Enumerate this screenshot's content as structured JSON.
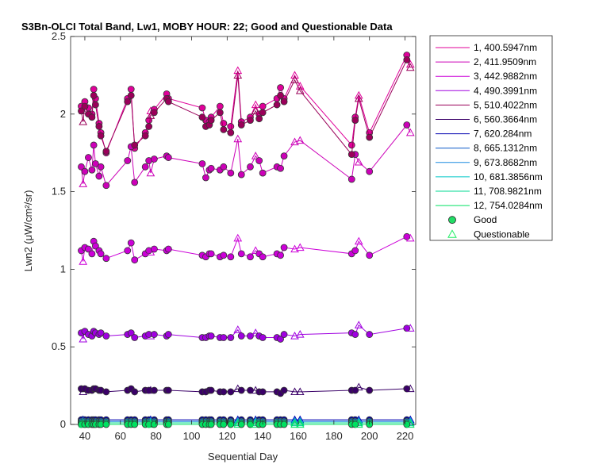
{
  "chart_data": {
    "type": "scatter",
    "title": "S3Bn-OLCI Total Band, Lw1, MOBY HOUR: 22;  Good and Questionable Data",
    "xlabel": "Sequential Day",
    "ylabel": "Lwn2 (μW/cm²/sr)",
    "xlim": [
      32,
      226
    ],
    "ylim": [
      0,
      2.5
    ],
    "x_ticks": [
      40,
      60,
      80,
      100,
      120,
      140,
      160,
      180,
      200,
      220
    ],
    "y_ticks": [
      0,
      0.5,
      1,
      1.5,
      2,
      2.5
    ],
    "y_tick_labels": [
      "0",
      "0.5",
      "1",
      "1.5",
      "2",
      "2.5"
    ],
    "grid": false,
    "legend_position": "outside-right",
    "series": [
      {
        "name": "1, 400.5947nm",
        "color": "#e0009a",
        "values": [
          2.05,
          2.02,
          2.08,
          2.04,
          2.0,
          2.16,
          2.1,
          1.94,
          1.88,
          1.75,
          2.1,
          2.16,
          1.78,
          1.88,
          1.96,
          2.02,
          2.03,
          2.13,
          2.1,
          2.04,
          1.96,
          1.95,
          1.98,
          2.05,
          1.94,
          1.92,
          2.28,
          1.95,
          1.98,
          2.06,
          2.0,
          2.05,
          2.1,
          2.17,
          2.1,
          2.25,
          2.18,
          1.8,
          1.98,
          2.12,
          1.88,
          2.38,
          2.32
        ]
      },
      {
        "name": "2, 411.9509nm",
        "color": "#cc00b8",
        "values": [
          1.66,
          1.55,
          1.63,
          1.72,
          1.64,
          1.8,
          1.68,
          1.6,
          1.66,
          1.54,
          1.7,
          1.79,
          1.56,
          1.66,
          1.7,
          1.62,
          1.71,
          1.73,
          1.72,
          1.68,
          1.59,
          1.64,
          1.65,
          1.64,
          1.66,
          1.62,
          1.84,
          1.61,
          1.66,
          1.73,
          1.7,
          1.62,
          1.66,
          1.65,
          1.73,
          1.82,
          1.83,
          1.58,
          1.74,
          1.69,
          1.63,
          1.93,
          1.88
        ]
      },
      {
        "name": "3, 442.9882nm",
        "color": "#cc00d8",
        "values": [
          1.12,
          1.05,
          1.14,
          1.13,
          1.1,
          1.18,
          1.15,
          1.12,
          1.1,
          1.07,
          1.12,
          1.17,
          1.06,
          1.1,
          1.12,
          1.11,
          1.13,
          1.12,
          1.13,
          1.09,
          1.08,
          1.1,
          1.1,
          1.08,
          1.09,
          1.08,
          1.2,
          1.1,
          1.08,
          1.12,
          1.1,
          1.08,
          1.1,
          1.09,
          1.14,
          1.13,
          1.14,
          1.1,
          1.12,
          1.18,
          1.09,
          1.21,
          1.2
        ]
      },
      {
        "name": "4, 490.3991nm",
        "color": "#a000e0",
        "values": [
          0.59,
          0.55,
          0.6,
          0.58,
          0.57,
          0.6,
          0.59,
          0.58,
          0.59,
          0.57,
          0.58,
          0.59,
          0.56,
          0.57,
          0.58,
          0.57,
          0.58,
          0.57,
          0.58,
          0.56,
          0.56,
          0.57,
          0.57,
          0.56,
          0.56,
          0.56,
          0.61,
          0.57,
          0.57,
          0.59,
          0.57,
          0.56,
          0.56,
          0.55,
          0.58,
          0.57,
          0.58,
          0.59,
          0.58,
          0.64,
          0.58,
          0.62,
          0.62
        ]
      },
      {
        "name": "5, 510.4022nm",
        "color": "#9a005a",
        "values": [
          2.02,
          1.95,
          2.05,
          2.0,
          1.98,
          2.12,
          2.06,
          1.92,
          1.86,
          1.76,
          2.08,
          2.12,
          1.8,
          1.86,
          1.92,
          1.99,
          2.01,
          2.1,
          2.08,
          1.98,
          1.92,
          1.93,
          1.96,
          2.01,
          1.9,
          1.88,
          2.25,
          1.93,
          1.96,
          2.02,
          1.97,
          2.01,
          2.06,
          2.12,
          2.08,
          2.22,
          2.15,
          1.74,
          1.96,
          2.1,
          1.85,
          2.35,
          2.3
        ]
      },
      {
        "name": "6, 560.3664nm",
        "color": "#3a0068",
        "values": [
          0.23,
          0.21,
          0.23,
          0.22,
          0.22,
          0.23,
          0.23,
          0.22,
          0.22,
          0.21,
          0.22,
          0.23,
          0.21,
          0.22,
          0.22,
          0.22,
          0.22,
          0.22,
          0.22,
          0.21,
          0.21,
          0.22,
          0.22,
          0.21,
          0.21,
          0.21,
          0.23,
          0.22,
          0.22,
          0.22,
          0.21,
          0.21,
          0.21,
          0.2,
          0.22,
          0.21,
          0.21,
          0.22,
          0.22,
          0.24,
          0.22,
          0.23,
          0.23
        ]
      },
      {
        "name": "7,  620.284nm",
        "color": "#0000b0",
        "values": [
          0.03,
          0.03,
          0.03,
          0.03,
          0.03,
          0.03,
          0.03,
          0.03,
          0.03,
          0.03,
          0.03,
          0.03,
          0.03,
          0.03,
          0.03,
          0.03,
          0.03,
          0.03,
          0.03,
          0.03,
          0.03,
          0.03,
          0.03,
          0.03,
          0.03,
          0.03,
          0.03,
          0.03,
          0.03,
          0.03,
          0.03,
          0.03,
          0.03,
          0.03,
          0.03,
          0.03,
          0.03,
          0.03,
          0.03,
          0.03,
          0.03,
          0.03,
          0.03
        ]
      },
      {
        "name": "8, 665.1312nm",
        "color": "#0a58c8",
        "values": [
          0.02,
          0.02,
          0.02,
          0.02,
          0.02,
          0.02,
          0.02,
          0.02,
          0.02,
          0.02,
          0.02,
          0.02,
          0.02,
          0.02,
          0.02,
          0.02,
          0.02,
          0.02,
          0.02,
          0.02,
          0.02,
          0.02,
          0.02,
          0.02,
          0.02,
          0.02,
          0.02,
          0.02,
          0.02,
          0.02,
          0.02,
          0.02,
          0.02,
          0.02,
          0.02,
          0.02,
          0.02,
          0.02,
          0.02,
          0.02,
          0.02,
          0.02,
          0.02
        ]
      },
      {
        "name": "9, 673.8682nm",
        "color": "#1a8ae0",
        "values": [
          0.02,
          0.02,
          0.02,
          0.02,
          0.02,
          0.02,
          0.02,
          0.02,
          0.02,
          0.02,
          0.02,
          0.02,
          0.02,
          0.02,
          0.02,
          0.02,
          0.02,
          0.02,
          0.02,
          0.02,
          0.02,
          0.02,
          0.02,
          0.02,
          0.02,
          0.02,
          0.02,
          0.02,
          0.02,
          0.02,
          0.02,
          0.02,
          0.02,
          0.02,
          0.02,
          0.02,
          0.02,
          0.02,
          0.02,
          0.02,
          0.02,
          0.02,
          0.02
        ]
      },
      {
        "name": "10, 681.3856nm",
        "color": "#00c8c8",
        "values": [
          0.01,
          0.01,
          0.01,
          0.01,
          0.01,
          0.01,
          0.01,
          0.01,
          0.01,
          0.01,
          0.01,
          0.01,
          0.01,
          0.01,
          0.01,
          0.01,
          0.01,
          0.01,
          0.01,
          0.01,
          0.01,
          0.01,
          0.01,
          0.01,
          0.01,
          0.01,
          0.01,
          0.01,
          0.01,
          0.01,
          0.01,
          0.01,
          0.01,
          0.01,
          0.01,
          0.01,
          0.01,
          0.01,
          0.01,
          0.01,
          0.01,
          0.01,
          0.01
        ]
      },
      {
        "name": "11, 708.9821nm",
        "color": "#00d890",
        "values": [
          0.01,
          0.01,
          0.01,
          0.01,
          0.01,
          0.01,
          0.01,
          0.01,
          0.01,
          0.01,
          0.01,
          0.01,
          0.01,
          0.01,
          0.01,
          0.01,
          0.01,
          0.01,
          0.01,
          0.01,
          0.01,
          0.01,
          0.01,
          0.01,
          0.01,
          0.01,
          0.01,
          0.01,
          0.01,
          0.01,
          0.01,
          0.01,
          0.01,
          0.01,
          0.01,
          0.01,
          0.01,
          0.01,
          0.01,
          0.01,
          0.01,
          0.01,
          0.01
        ]
      },
      {
        "name": "12, 754.0284nm",
        "color": "#00e060",
        "values": [
          0.0,
          0.0,
          0.0,
          0.0,
          0.0,
          0.0,
          0.0,
          0.0,
          0.0,
          0.0,
          0.0,
          0.0,
          0.0,
          0.0,
          0.0,
          0.0,
          0.0,
          0.0,
          0.0,
          0.0,
          0.0,
          0.0,
          0.0,
          0.0,
          0.0,
          0.0,
          0.0,
          0.0,
          0.0,
          0.0,
          0.0,
          0.0,
          0.0,
          0.0,
          0.0,
          0.0,
          0.0,
          0.0,
          0.0,
          0.0,
          0.0,
          0.0,
          0.0
        ]
      }
    ],
    "x": [
      38,
      39,
      40,
      42,
      44,
      45,
      46,
      48,
      49,
      52,
      64,
      66,
      68,
      74,
      76,
      77,
      79,
      86,
      87,
      106,
      108,
      110,
      111,
      116,
      118,
      122,
      126,
      128,
      133,
      136,
      138,
      140,
      148,
      150,
      152,
      158,
      161,
      190,
      192,
      194,
      200,
      221,
      223
    ],
    "quality": [
      "G",
      "Q",
      "G",
      "G",
      "G",
      "G",
      "G",
      "G",
      "G",
      "G",
      "G",
      "G",
      "G",
      "G",
      "G",
      "Q",
      "G",
      "G",
      "G",
      "G",
      "G",
      "G",
      "G",
      "G",
      "G",
      "G",
      "Q",
      "G",
      "G",
      "Q",
      "G",
      "G",
      "G",
      "G",
      "G",
      "Q",
      "Q",
      "G",
      "G",
      "Q",
      "G",
      "G",
      "Q"
    ],
    "legend_entries": {
      "good_label": "Good",
      "good_color": "#22dd66",
      "questionable_label": "Questionable",
      "questionable_color": "#22ee66"
    }
  }
}
